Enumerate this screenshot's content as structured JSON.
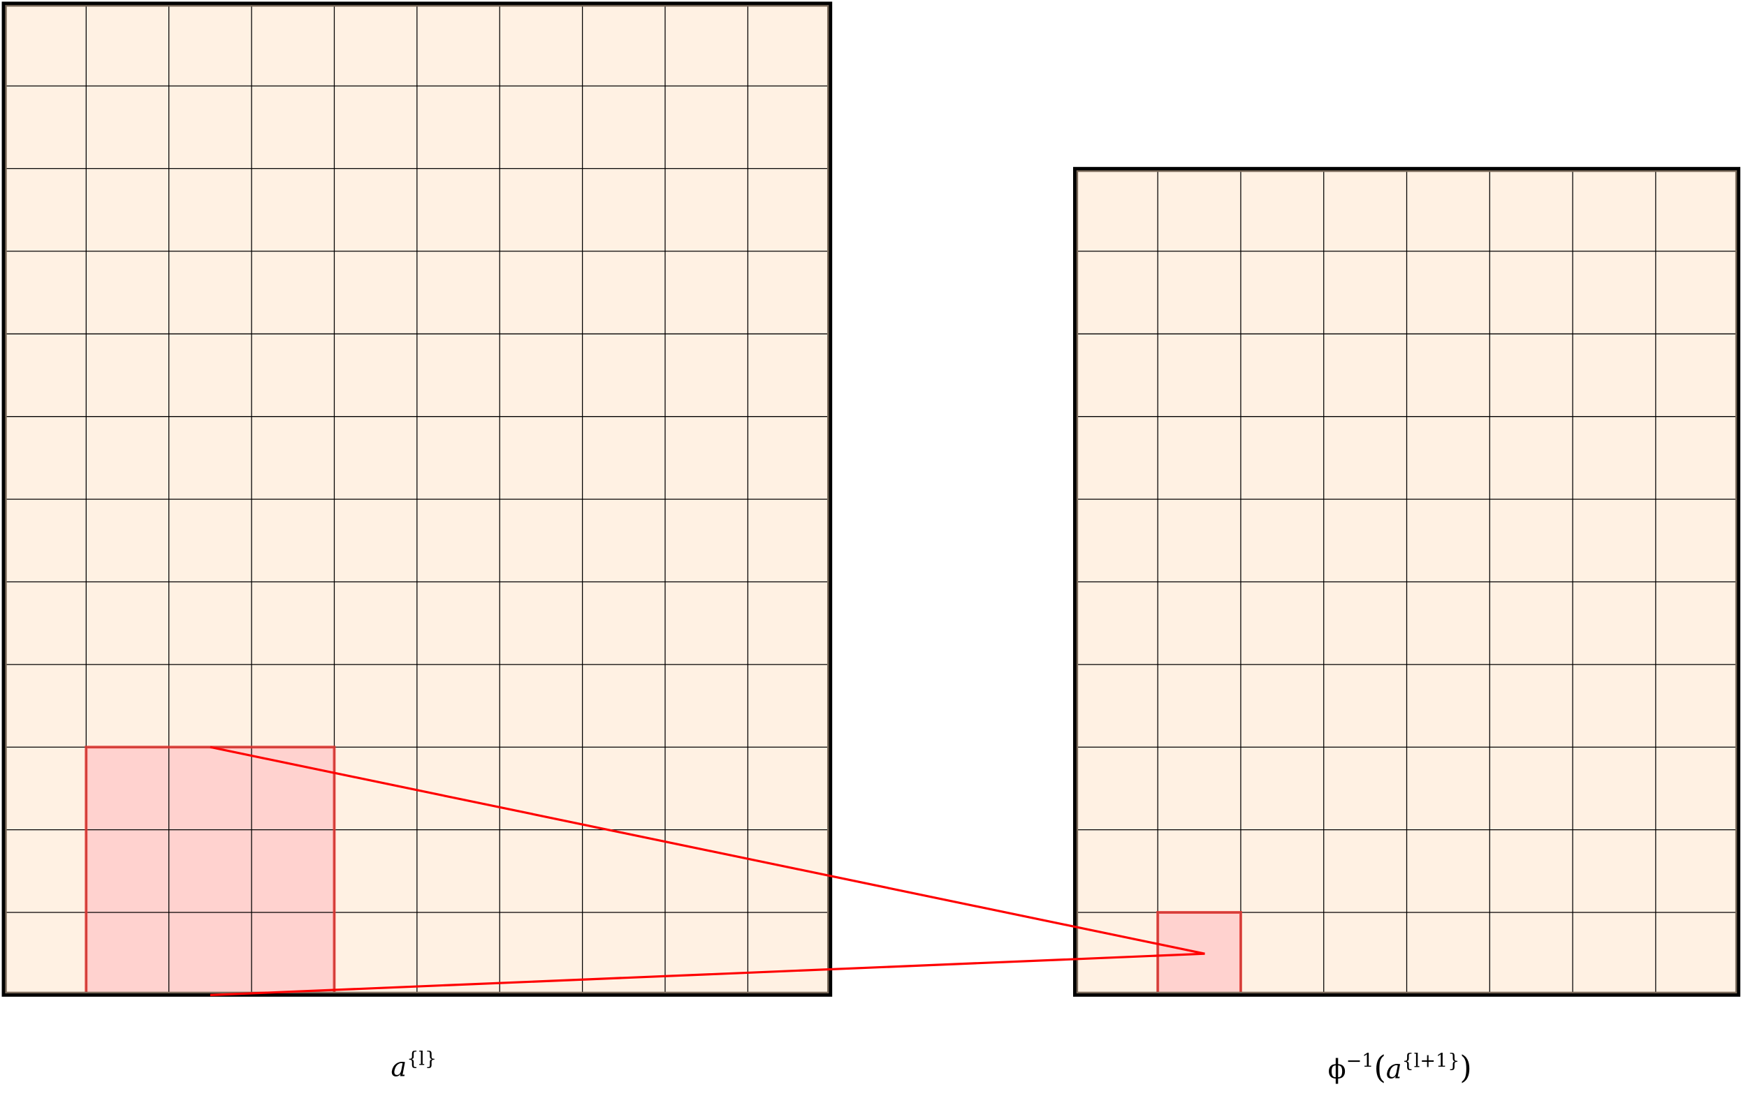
{
  "left_grid": {
    "label": {
      "base": "a",
      "sup": "{l}"
    },
    "cols": 10,
    "rows": 12,
    "highlight": {
      "col_start": 1,
      "col_end": 3,
      "row_start": 9,
      "row_end": 11
    }
  },
  "right_grid": {
    "label": {
      "prefix": "ϕ",
      "prefix_sup": "−1",
      "open": "(",
      "base": "a",
      "sup": "{l+1}",
      "close": ")"
    },
    "cols": 8,
    "rows": 10,
    "highlight": {
      "col_start": 1,
      "col_end": 1,
      "row_start": 9,
      "row_end": 9
    }
  },
  "colors": {
    "cell_fill": "#FFF1E3",
    "frame": "#000000",
    "frame_inner": "#7a6a5a",
    "grid_line": "#000000",
    "highlight_fill": "#FFD2CF",
    "highlight_stroke": "#E53935",
    "connector": "#FF0000"
  }
}
